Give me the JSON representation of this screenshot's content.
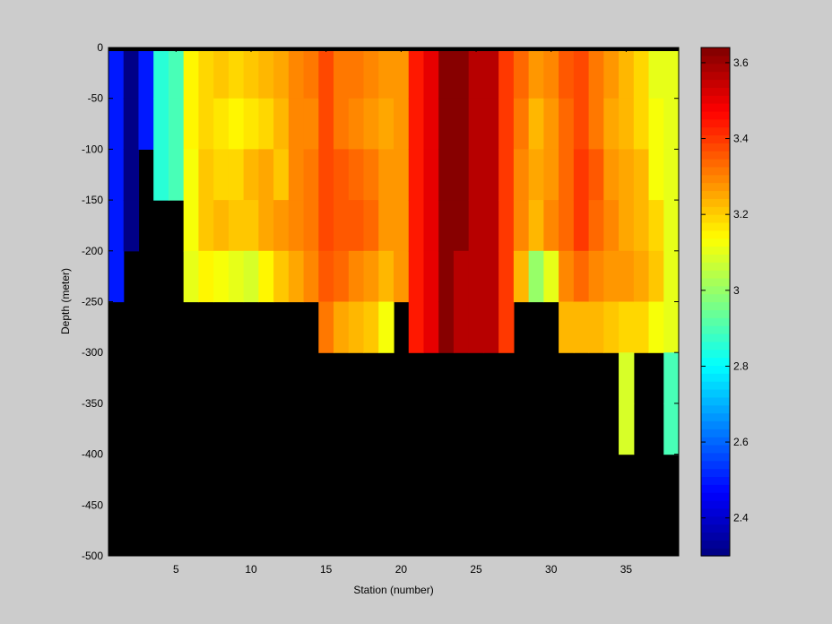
{
  "chart_data": {
    "type": "heatmap",
    "title": "",
    "xlabel": "Station (number)",
    "ylabel": "Depth (meter)",
    "xlim": [
      1,
      38
    ],
    "ylim": [
      -500,
      0
    ],
    "x_ticks": [
      5,
      10,
      15,
      20,
      25,
      30,
      35
    ],
    "y_ticks": [
      0,
      -50,
      -100,
      -150,
      -200,
      -250,
      -300,
      -350,
      -400,
      -450,
      -500
    ],
    "colorbar": {
      "range": [
        2.3,
        3.64
      ],
      "ticks": [
        2.4,
        2.6,
        2.8,
        3,
        3.2,
        3.4,
        3.6
      ],
      "colormap": "jet"
    },
    "missing_color": "#000000",
    "station_min": 1,
    "depth_step": 50,
    "stations": [
      [
        2.5,
        2.5,
        2.5,
        2.5,
        2.5
      ],
      [
        2.3,
        2.3,
        2.3,
        2.3
      ],
      [
        2.5,
        2.5
      ],
      [
        2.85,
        2.85,
        2.85
      ],
      [
        2.9,
        2.9,
        2.9
      ],
      [
        3.14,
        3.14,
        3.12,
        3.12,
        3.1
      ],
      [
        3.2,
        3.18,
        3.22,
        3.22,
        3.14
      ],
      [
        3.22,
        3.16,
        3.2,
        3.24,
        3.12
      ],
      [
        3.18,
        3.14,
        3.18,
        3.22,
        3.1
      ],
      [
        3.22,
        3.16,
        3.24,
        3.22,
        3.08
      ],
      [
        3.24,
        3.2,
        3.26,
        3.26,
        3.14
      ],
      [
        3.26,
        3.24,
        3.22,
        3.28,
        3.22
      ],
      [
        3.3,
        3.3,
        3.3,
        3.3,
        3.26
      ],
      [
        3.32,
        3.3,
        3.32,
        3.32,
        3.3
      ],
      [
        3.38,
        3.38,
        3.38,
        3.38,
        3.36,
        3.32
      ],
      [
        3.32,
        3.32,
        3.36,
        3.36,
        3.34,
        3.26
      ],
      [
        3.32,
        3.3,
        3.34,
        3.36,
        3.3,
        3.24
      ],
      [
        3.3,
        3.28,
        3.32,
        3.34,
        3.28,
        3.22
      ],
      [
        3.28,
        3.26,
        3.28,
        3.28,
        3.24,
        3.12
      ],
      [
        3.28,
        3.28,
        3.28,
        3.28,
        3.28
      ],
      [
        3.44,
        3.44,
        3.44,
        3.44,
        3.44,
        3.44
      ],
      [
        3.5,
        3.5,
        3.5,
        3.5,
        3.5,
        3.5
      ],
      [
        3.64,
        3.64,
        3.64,
        3.64,
        3.64,
        3.64
      ],
      [
        3.64,
        3.64,
        3.64,
        3.64,
        3.56,
        3.56
      ],
      [
        3.56,
        3.56,
        3.56,
        3.56,
        3.56,
        3.56
      ],
      [
        3.56,
        3.56,
        3.56,
        3.56,
        3.56,
        3.56
      ],
      [
        3.4,
        3.4,
        3.4,
        3.4,
        3.4,
        3.4
      ],
      [
        3.34,
        3.32,
        3.3,
        3.3,
        3.24
      ],
      [
        3.28,
        3.24,
        3.26,
        3.24,
        3.0
      ],
      [
        3.3,
        3.28,
        3.28,
        3.3,
        3.1
      ],
      [
        3.36,
        3.34,
        3.34,
        3.34,
        3.3,
        3.24
      ],
      [
        3.38,
        3.38,
        3.4,
        3.4,
        3.34,
        3.24
      ],
      [
        3.32,
        3.32,
        3.36,
        3.34,
        3.3,
        3.24
      ],
      [
        3.28,
        3.26,
        3.28,
        3.3,
        3.28,
        3.22
      ],
      [
        3.24,
        3.24,
        3.26,
        3.26,
        3.28,
        3.2,
        3.08,
        3.08
      ],
      [
        3.2,
        3.2,
        3.24,
        3.24,
        3.26,
        3.18
      ],
      [
        3.1,
        3.12,
        3.12,
        3.18,
        3.22,
        3.12
      ],
      [
        3.1,
        3.1,
        3.1,
        3.1,
        3.1,
        3.1,
        2.9,
        2.9
      ]
    ]
  }
}
